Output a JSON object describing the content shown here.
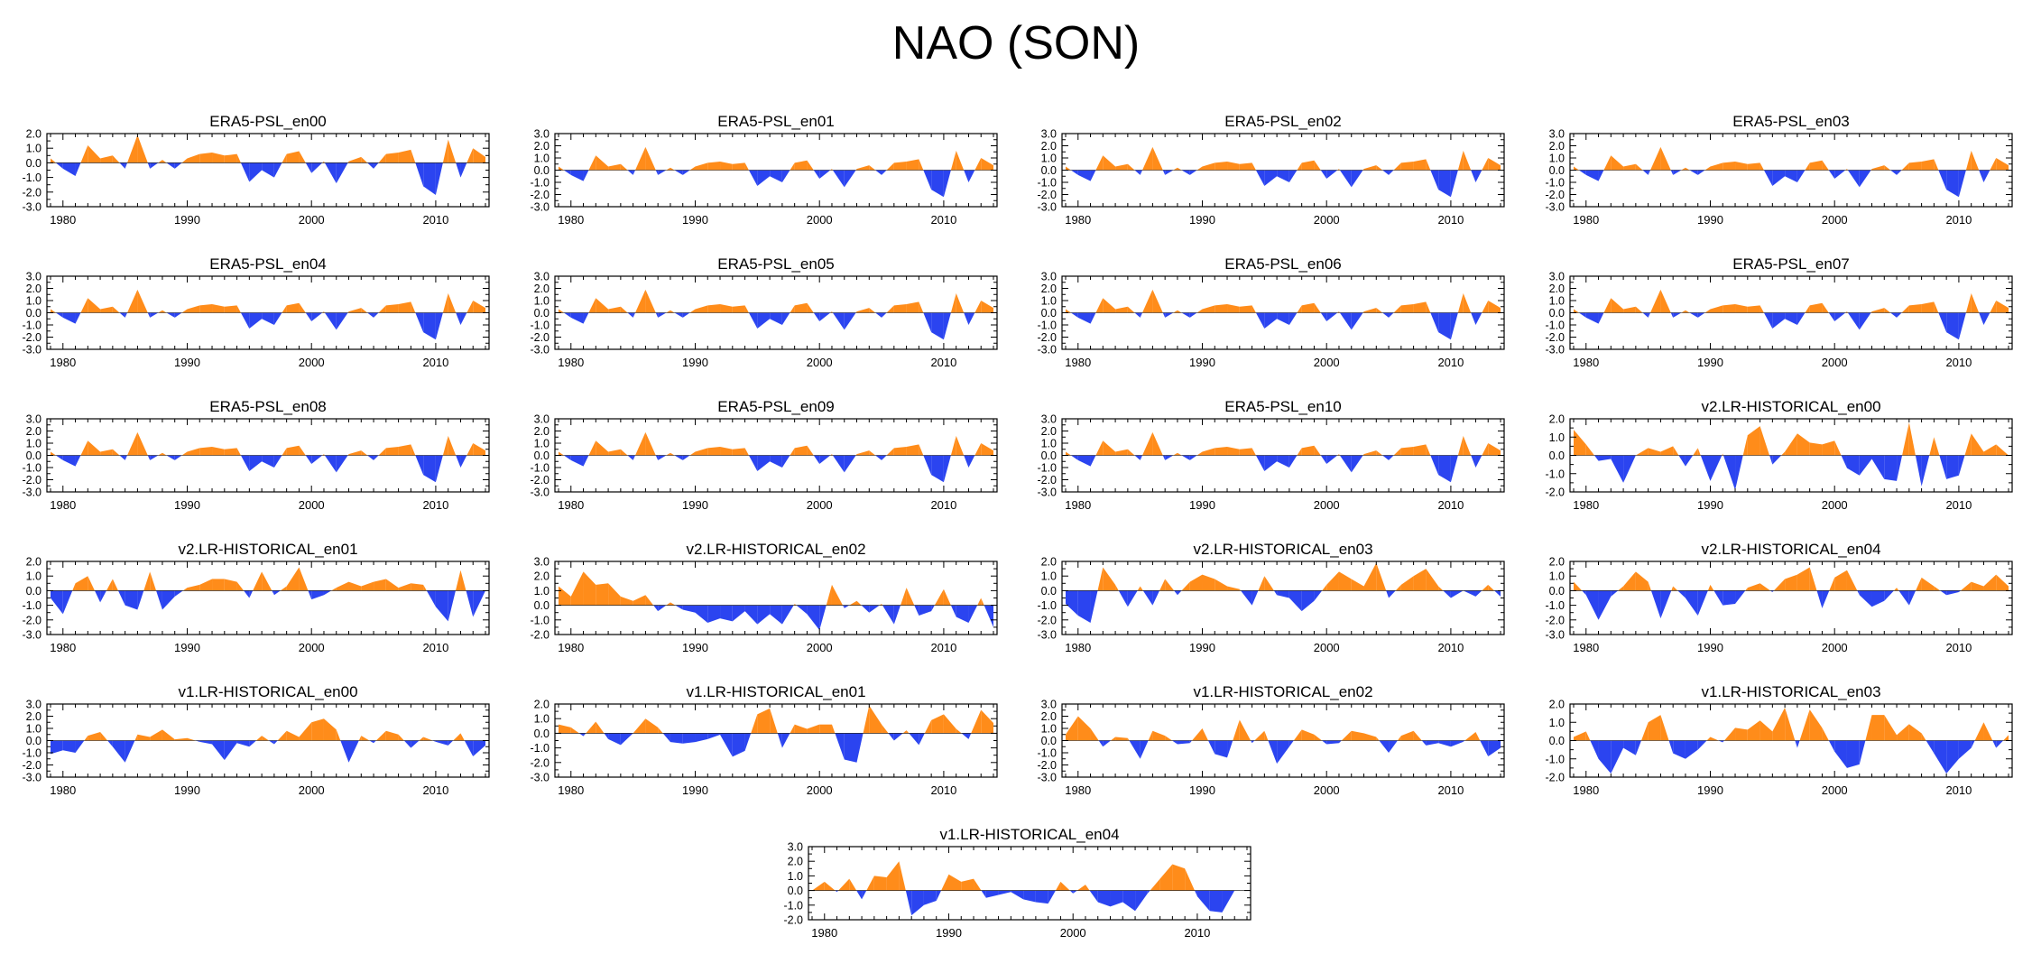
{
  "title": "NAO (SON)",
  "colors": {
    "positive": "#ff8c1a",
    "negative": "#2b44f0",
    "axis": "#000000"
  },
  "chart_data": [
    {
      "type": "area",
      "title": "ERA5-PSL_en00",
      "years_start": 1979,
      "x_ticks": [
        1980,
        1990,
        2000,
        2010
      ],
      "y_ticks": [
        -3,
        -2,
        -1,
        0,
        1,
        2
      ],
      "ylim": [
        -3,
        2
      ],
      "values": [
        0.3,
        -0.4,
        -0.9,
        1.2,
        0.3,
        0.5,
        -0.4,
        1.9,
        -0.4,
        0.2,
        -0.4,
        0.3,
        0.6,
        0.7,
        0.5,
        0.6,
        -1.3,
        -0.5,
        -1.0,
        0.6,
        0.8,
        -0.7,
        0.1,
        -1.4,
        0.1,
        0.4,
        -0.4,
        0.6,
        0.7,
        0.9,
        -1.6,
        -2.2,
        1.6,
        -1.0,
        1.0,
        0.4
      ]
    },
    {
      "type": "area",
      "title": "ERA5-PSL_en01",
      "years_start": 1979,
      "x_ticks": [
        1980,
        1990,
        2000,
        2010
      ],
      "y_ticks": [
        -3,
        -2,
        -1,
        0,
        1,
        2,
        3
      ],
      "ylim": [
        -3,
        3
      ],
      "values": [
        0.3,
        -0.4,
        -0.9,
        1.2,
        0.3,
        0.5,
        -0.4,
        1.9,
        -0.4,
        0.2,
        -0.4,
        0.3,
        0.6,
        0.7,
        0.5,
        0.6,
        -1.3,
        -0.5,
        -1.0,
        0.6,
        0.8,
        -0.7,
        0.1,
        -1.4,
        0.1,
        0.4,
        -0.4,
        0.6,
        0.7,
        0.9,
        -1.6,
        -2.2,
        1.6,
        -1.0,
        1.0,
        0.4
      ]
    },
    {
      "type": "area",
      "title": "ERA5-PSL_en02",
      "years_start": 1979,
      "x_ticks": [
        1980,
        1990,
        2000,
        2010
      ],
      "y_ticks": [
        -3,
        -2,
        -1,
        0,
        1,
        2,
        3
      ],
      "ylim": [
        -3,
        3
      ],
      "values": [
        0.3,
        -0.4,
        -0.9,
        1.2,
        0.3,
        0.5,
        -0.4,
        1.9,
        -0.4,
        0.2,
        -0.4,
        0.3,
        0.6,
        0.7,
        0.5,
        0.6,
        -1.3,
        -0.5,
        -1.0,
        0.6,
        0.8,
        -0.7,
        0.1,
        -1.4,
        0.1,
        0.4,
        -0.4,
        0.6,
        0.7,
        0.9,
        -1.6,
        -2.2,
        1.6,
        -1.0,
        1.0,
        0.4
      ]
    },
    {
      "type": "area",
      "title": "ERA5-PSL_en03",
      "years_start": 1979,
      "x_ticks": [
        1980,
        1990,
        2000,
        2010
      ],
      "y_ticks": [
        -3,
        -2,
        -1,
        0,
        1,
        2,
        3
      ],
      "ylim": [
        -3,
        3
      ],
      "values": [
        0.3,
        -0.4,
        -0.9,
        1.2,
        0.3,
        0.5,
        -0.4,
        1.9,
        -0.4,
        0.2,
        -0.4,
        0.3,
        0.6,
        0.7,
        0.5,
        0.6,
        -1.3,
        -0.5,
        -1.0,
        0.6,
        0.8,
        -0.7,
        0.1,
        -1.4,
        0.1,
        0.4,
        -0.4,
        0.6,
        0.7,
        0.9,
        -1.6,
        -2.2,
        1.6,
        -1.0,
        1.0,
        0.4
      ]
    },
    {
      "type": "area",
      "title": "ERA5-PSL_en04",
      "years_start": 1979,
      "x_ticks": [
        1980,
        1990,
        2000,
        2010
      ],
      "y_ticks": [
        -3,
        -2,
        -1,
        0,
        1,
        2,
        3
      ],
      "ylim": [
        -3,
        3
      ],
      "values": [
        0.3,
        -0.4,
        -0.9,
        1.2,
        0.3,
        0.5,
        -0.4,
        1.9,
        -0.4,
        0.2,
        -0.4,
        0.3,
        0.6,
        0.7,
        0.5,
        0.6,
        -1.3,
        -0.5,
        -1.0,
        0.6,
        0.8,
        -0.7,
        0.1,
        -1.4,
        0.1,
        0.4,
        -0.4,
        0.6,
        0.7,
        0.9,
        -1.6,
        -2.2,
        1.6,
        -1.0,
        1.0,
        0.4
      ]
    },
    {
      "type": "area",
      "title": "ERA5-PSL_en05",
      "years_start": 1979,
      "x_ticks": [
        1980,
        1990,
        2000,
        2010
      ],
      "y_ticks": [
        -3,
        -2,
        -1,
        0,
        1,
        2,
        3
      ],
      "ylim": [
        -3,
        3
      ],
      "values": [
        0.3,
        -0.4,
        -0.9,
        1.2,
        0.3,
        0.5,
        -0.4,
        1.9,
        -0.4,
        0.2,
        -0.4,
        0.3,
        0.6,
        0.7,
        0.5,
        0.6,
        -1.3,
        -0.5,
        -1.0,
        0.6,
        0.8,
        -0.7,
        0.1,
        -1.4,
        0.1,
        0.4,
        -0.4,
        0.6,
        0.7,
        0.9,
        -1.6,
        -2.2,
        1.6,
        -1.0,
        1.0,
        0.4
      ]
    },
    {
      "type": "area",
      "title": "ERA5-PSL_en06",
      "years_start": 1979,
      "x_ticks": [
        1980,
        1990,
        2000,
        2010
      ],
      "y_ticks": [
        -3,
        -2,
        -1,
        0,
        1,
        2,
        3
      ],
      "ylim": [
        -3,
        3
      ],
      "values": [
        0.3,
        -0.4,
        -0.9,
        1.2,
        0.3,
        0.5,
        -0.4,
        1.9,
        -0.4,
        0.2,
        -0.4,
        0.3,
        0.6,
        0.7,
        0.5,
        0.6,
        -1.3,
        -0.5,
        -1.0,
        0.6,
        0.8,
        -0.7,
        0.1,
        -1.4,
        0.1,
        0.4,
        -0.4,
        0.6,
        0.7,
        0.9,
        -1.6,
        -2.2,
        1.6,
        -1.0,
        1.0,
        0.4
      ]
    },
    {
      "type": "area",
      "title": "ERA5-PSL_en07",
      "years_start": 1979,
      "x_ticks": [
        1980,
        1990,
        2000,
        2010
      ],
      "y_ticks": [
        -3,
        -2,
        -1,
        0,
        1,
        2,
        3
      ],
      "ylim": [
        -3,
        3
      ],
      "values": [
        0.3,
        -0.4,
        -0.9,
        1.2,
        0.3,
        0.5,
        -0.4,
        1.9,
        -0.4,
        0.2,
        -0.4,
        0.3,
        0.6,
        0.7,
        0.5,
        0.6,
        -1.3,
        -0.5,
        -1.0,
        0.6,
        0.8,
        -0.7,
        0.1,
        -1.4,
        0.1,
        0.4,
        -0.4,
        0.6,
        0.7,
        0.9,
        -1.6,
        -2.2,
        1.6,
        -1.0,
        1.0,
        0.4
      ]
    },
    {
      "type": "area",
      "title": "ERA5-PSL_en08",
      "years_start": 1979,
      "x_ticks": [
        1980,
        1990,
        2000,
        2010
      ],
      "y_ticks": [
        -3,
        -2,
        -1,
        0,
        1,
        2,
        3
      ],
      "ylim": [
        -3,
        3
      ],
      "values": [
        0.3,
        -0.4,
        -0.9,
        1.2,
        0.3,
        0.5,
        -0.4,
        1.9,
        -0.4,
        0.2,
        -0.4,
        0.3,
        0.6,
        0.7,
        0.5,
        0.6,
        -1.3,
        -0.5,
        -1.0,
        0.6,
        0.8,
        -0.7,
        0.1,
        -1.4,
        0.1,
        0.4,
        -0.4,
        0.6,
        0.7,
        0.9,
        -1.6,
        -2.2,
        1.6,
        -1.0,
        1.0,
        0.4
      ]
    },
    {
      "type": "area",
      "title": "ERA5-PSL_en09",
      "years_start": 1979,
      "x_ticks": [
        1980,
        1990,
        2000,
        2010
      ],
      "y_ticks": [
        -3,
        -2,
        -1,
        0,
        1,
        2,
        3
      ],
      "ylim": [
        -3,
        3
      ],
      "values": [
        0.3,
        -0.4,
        -0.9,
        1.2,
        0.3,
        0.5,
        -0.4,
        1.9,
        -0.4,
        0.2,
        -0.4,
        0.3,
        0.6,
        0.7,
        0.5,
        0.6,
        -1.3,
        -0.5,
        -1.0,
        0.6,
        0.8,
        -0.7,
        0.1,
        -1.4,
        0.1,
        0.4,
        -0.4,
        0.6,
        0.7,
        0.9,
        -1.6,
        -2.2,
        1.6,
        -1.0,
        1.0,
        0.4
      ]
    },
    {
      "type": "area",
      "title": "ERA5-PSL_en10",
      "years_start": 1979,
      "x_ticks": [
        1980,
        1990,
        2000,
        2010
      ],
      "y_ticks": [
        -3,
        -2,
        -1,
        0,
        1,
        2,
        3
      ],
      "ylim": [
        -3,
        3
      ],
      "values": [
        0.3,
        -0.4,
        -0.9,
        1.2,
        0.3,
        0.5,
        -0.4,
        1.9,
        -0.4,
        0.2,
        -0.4,
        0.3,
        0.6,
        0.7,
        0.5,
        0.6,
        -1.3,
        -0.5,
        -1.0,
        0.6,
        0.8,
        -0.7,
        0.1,
        -1.4,
        0.1,
        0.4,
        -0.4,
        0.6,
        0.7,
        0.9,
        -1.6,
        -2.2,
        1.6,
        -1.0,
        1.0,
        0.4
      ]
    },
    {
      "type": "area",
      "title": "v2.LR-HISTORICAL_en00",
      "years_start": 1979,
      "x_ticks": [
        1980,
        1990,
        2000,
        2010
      ],
      "y_ticks": [
        -2,
        -1,
        0,
        1,
        2
      ],
      "ylim": [
        -2,
        2
      ],
      "values": [
        1.4,
        0.6,
        -0.3,
        -0.2,
        -1.5,
        0.0,
        0.4,
        0.2,
        0.5,
        -0.6,
        0.4,
        -1.4,
        0.1,
        -1.9,
        1.1,
        1.6,
        -0.5,
        0.2,
        1.2,
        0.7,
        0.6,
        0.8,
        -0.7,
        -1.1,
        -0.2,
        -1.3,
        -1.4,
        1.8,
        -1.7,
        1.0,
        -1.3,
        -1.1,
        1.2,
        0.2,
        0.6,
        0.0
      ]
    },
    {
      "type": "area",
      "title": "v2.LR-HISTORICAL_en01",
      "years_start": 1979,
      "x_ticks": [
        1980,
        1990,
        2000,
        2010
      ],
      "y_ticks": [
        -3,
        -2,
        -1,
        0,
        1,
        2
      ],
      "ylim": [
        -3,
        2
      ],
      "values": [
        -0.5,
        -1.6,
        0.5,
        1.0,
        -0.8,
        0.8,
        -1.0,
        -1.3,
        1.3,
        -1.3,
        -0.4,
        0.2,
        0.4,
        0.8,
        0.8,
        0.6,
        -0.5,
        1.3,
        -0.3,
        0.3,
        1.6,
        -0.6,
        -0.3,
        0.2,
        0.6,
        0.3,
        0.6,
        0.8,
        0.2,
        0.5,
        0.4,
        -1.1,
        -2.1,
        1.4,
        -1.8,
        0.0
      ]
    },
    {
      "type": "area",
      "title": "v2.LR-HISTORICAL_en02",
      "years_start": 1979,
      "x_ticks": [
        1980,
        1990,
        2000,
        2010
      ],
      "y_ticks": [
        -2,
        -1,
        0,
        1,
        2,
        3
      ],
      "ylim": [
        -2,
        3
      ],
      "values": [
        1.3,
        0.6,
        2.3,
        1.4,
        1.5,
        0.6,
        0.3,
        0.7,
        -0.4,
        0.2,
        -0.3,
        -0.5,
        -1.2,
        -0.9,
        -1.1,
        -0.4,
        -1.3,
        -0.6,
        -1.3,
        0.1,
        -0.6,
        -1.7,
        1.4,
        -0.2,
        0.3,
        -0.5,
        0.1,
        -1.3,
        1.2,
        -0.7,
        -0.4,
        1.1,
        -0.8,
        -1.2,
        0.5,
        -1.5
      ]
    },
    {
      "type": "area",
      "title": "v2.LR-HISTORICAL_en03",
      "years_start": 1979,
      "x_ticks": [
        1980,
        1990,
        2000,
        2010
      ],
      "y_ticks": [
        -3,
        -2,
        -1,
        0,
        1,
        2
      ],
      "ylim": [
        -3,
        2
      ],
      "values": [
        -0.9,
        -1.7,
        -2.2,
        1.6,
        0.4,
        -1.1,
        0.3,
        -1.0,
        0.8,
        -0.3,
        0.6,
        1.1,
        0.8,
        0.3,
        0.1,
        -1.0,
        1.0,
        -0.3,
        -0.5,
        -1.4,
        -0.7,
        0.4,
        1.3,
        0.8,
        0.3,
        1.9,
        -0.5,
        0.4,
        1.0,
        1.5,
        0.3,
        -0.5,
        0.0,
        -0.4,
        0.4,
        -0.4
      ]
    },
    {
      "type": "area",
      "title": "v2.LR-HISTORICAL_en04",
      "years_start": 1979,
      "x_ticks": [
        1980,
        1990,
        2000,
        2010
      ],
      "y_ticks": [
        -3,
        -2,
        -1,
        0,
        1,
        2
      ],
      "ylim": [
        -3,
        2
      ],
      "values": [
        0.6,
        -0.3,
        -2.0,
        -0.4,
        0.3,
        1.3,
        0.6,
        -1.9,
        0.3,
        -0.5,
        -1.7,
        0.4,
        -1.0,
        -0.9,
        0.2,
        0.5,
        -0.1,
        0.8,
        1.1,
        1.6,
        -1.2,
        0.9,
        1.4,
        -0.3,
        -1.1,
        -0.7,
        0.2,
        -1.0,
        0.9,
        0.3,
        -0.3,
        -0.1,
        0.6,
        0.3,
        1.1,
        0.3
      ]
    },
    {
      "type": "area",
      "title": "v1.LR-HISTORICAL_en00",
      "years_start": 1979,
      "x_ticks": [
        1980,
        1990,
        2000,
        2010
      ],
      "y_ticks": [
        -3,
        -2,
        -1,
        0,
        1,
        2,
        3
      ],
      "ylim": [
        -3,
        3
      ],
      "values": [
        -1.1,
        -0.8,
        -1.0,
        0.4,
        0.7,
        -0.5,
        -1.8,
        0.5,
        0.3,
        0.9,
        0.1,
        0.2,
        -0.1,
        -0.3,
        -1.6,
        -0.2,
        -0.5,
        0.4,
        -0.3,
        0.8,
        0.3,
        1.5,
        1.8,
        0.9,
        -1.8,
        0.4,
        -0.2,
        0.8,
        0.5,
        -0.6,
        0.3,
        -0.1,
        -0.4,
        0.6,
        -1.3,
        -0.4
      ]
    },
    {
      "type": "area",
      "title": "v1.LR-HISTORICAL_en01",
      "years_start": 1979,
      "x_ticks": [
        1980,
        1990,
        2000,
        2010
      ],
      "y_ticks": [
        -3,
        -2,
        -1,
        0,
        1,
        2
      ],
      "ylim": [
        -3,
        2
      ],
      "values": [
        0.6,
        0.4,
        -0.2,
        0.8,
        -0.4,
        -0.8,
        0.0,
        1.0,
        0.4,
        -0.6,
        -0.7,
        -0.6,
        -0.4,
        -0.1,
        -1.6,
        -1.2,
        1.3,
        1.7,
        -1.0,
        0.6,
        0.3,
        0.6,
        0.6,
        -1.8,
        -2.0,
        1.9,
        0.6,
        -0.5,
        0.2,
        -0.8,
        0.9,
        1.3,
        0.3,
        -0.4,
        1.6,
        0.7
      ]
    },
    {
      "type": "area",
      "title": "v1.LR-HISTORICAL_en02",
      "years_start": 1979,
      "x_ticks": [
        1980,
        1990,
        2000,
        2010
      ],
      "y_ticks": [
        -3,
        -2,
        -1,
        0,
        1,
        2,
        3
      ],
      "ylim": [
        -3,
        3
      ],
      "values": [
        0.5,
        2.0,
        1.0,
        -0.5,
        0.3,
        0.2,
        -1.5,
        0.8,
        0.4,
        -0.3,
        -0.2,
        1.0,
        -1.1,
        -1.4,
        1.7,
        -0.2,
        0.8,
        -1.9,
        -0.5,
        0.9,
        0.5,
        -0.3,
        -0.2,
        0.8,
        0.6,
        0.3,
        -1.0,
        0.4,
        0.8,
        -0.4,
        -0.2,
        -0.5,
        -0.1,
        0.7,
        -1.3,
        -0.6
      ]
    },
    {
      "type": "area",
      "title": "v1.LR-HISTORICAL_en03",
      "years_start": 1979,
      "x_ticks": [
        1980,
        1990,
        2000,
        2010
      ],
      "y_ticks": [
        -2,
        -1,
        0,
        1,
        2
      ],
      "ylim": [
        -2,
        2
      ],
      "values": [
        0.2,
        0.5,
        -1.0,
        -1.8,
        -0.4,
        -0.8,
        1.0,
        1.4,
        -0.7,
        -1.0,
        -0.5,
        0.2,
        -0.1,
        0.7,
        0.6,
        1.1,
        0.5,
        1.8,
        -0.4,
        1.7,
        0.7,
        -0.6,
        -1.5,
        -1.3,
        1.4,
        1.4,
        0.3,
        0.9,
        0.4,
        -0.7,
        -1.8,
        -1.0,
        -0.4,
        1.0,
        -0.4,
        0.3
      ]
    },
    {
      "type": "area",
      "title": "v1.LR-HISTORICAL_en04",
      "years_start": 1979,
      "x_ticks": [
        1980,
        1990,
        2000,
        2010
      ],
      "y_ticks": [
        -2,
        -1,
        0,
        1,
        2,
        3
      ],
      "ylim": [
        -2,
        3
      ],
      "values": [
        0.0,
        0.6,
        -0.1,
        0.8,
        -0.6,
        1.0,
        0.9,
        2.0,
        -1.7,
        -1.0,
        -0.7,
        1.1,
        0.6,
        0.8,
        -0.5,
        -0.3,
        -0.1,
        -0.6,
        -0.8,
        -0.9,
        0.6,
        -0.2,
        0.4,
        -0.8,
        -1.1,
        -0.8,
        -1.4,
        -0.2,
        0.8,
        1.8,
        1.5,
        -0.4,
        -1.4,
        -1.5,
        0.0,
        0.0
      ]
    }
  ]
}
